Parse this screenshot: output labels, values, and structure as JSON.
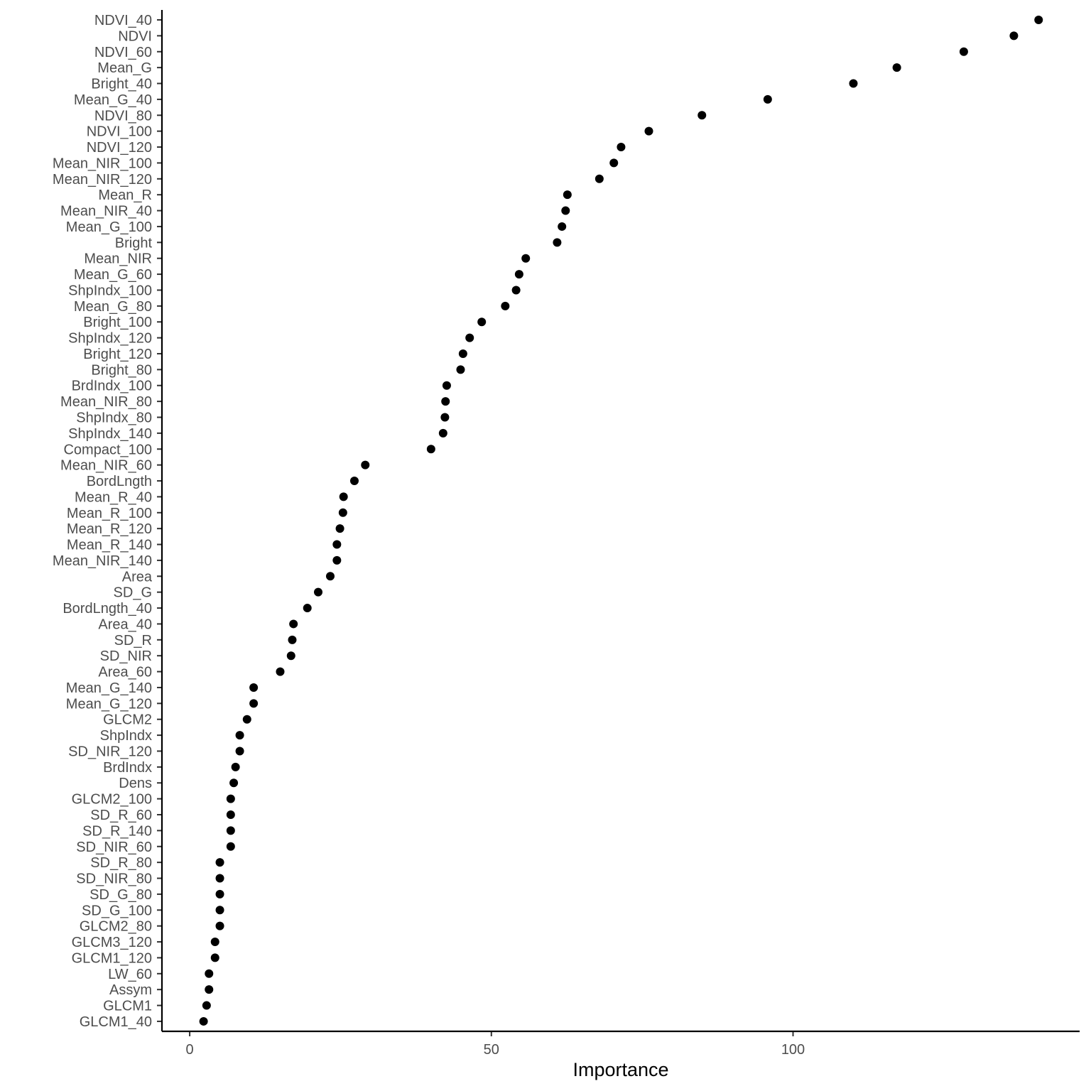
{
  "chart_data": {
    "type": "scatter",
    "title": "",
    "xlabel": "Importance",
    "ylabel": "",
    "xlim": [
      -4.6,
      147.5
    ],
    "xticks": [
      0,
      50,
      100
    ],
    "grid": false,
    "legend": "none",
    "point_color": "#000000",
    "categories": [
      "NDVI_40",
      "NDVI",
      "NDVI_60",
      "Mean_G",
      "Bright_40",
      "Mean_G_40",
      "NDVI_80",
      "NDVI_100",
      "NDVI_120",
      "Mean_NIR_100",
      "Mean_NIR_120",
      "Mean_R",
      "Mean_NIR_40",
      "Mean_G_100",
      "Bright",
      "Mean_NIR",
      "Mean_G_60",
      "ShpIndx_100",
      "Mean_G_80",
      "Bright_100",
      "ShpIndx_120",
      "Bright_120",
      "Bright_80",
      "BrdIndx_100",
      "Mean_NIR_80",
      "ShpIndx_80",
      "ShpIndx_140",
      "Compact_100",
      "Mean_NIR_60",
      "BordLngth",
      "Mean_R_40",
      "Mean_R_100",
      "Mean_R_120",
      "Mean_R_140",
      "Mean_NIR_140",
      "Area",
      "SD_G",
      "BordLngth_40",
      "Area_40",
      "SD_R",
      "SD_NIR",
      "Area_60",
      "Mean_G_140",
      "Mean_G_120",
      "GLCM2",
      "ShpIndx",
      "SD_NIR_120",
      "BrdIndx",
      "Dens",
      "GLCM2_100",
      "SD_R_60",
      "SD_R_140",
      "SD_NIR_60",
      "SD_R_80",
      "SD_NIR_80",
      "SD_G_80",
      "SD_G_100",
      "GLCM2_80",
      "GLCM3_120",
      "GLCM1_120",
      "LW_60",
      "Assym",
      "GLCM1",
      "GLCM1_40"
    ],
    "values": [
      140.7,
      136.6,
      128.3,
      117.2,
      110.0,
      95.8,
      84.9,
      76.1,
      71.5,
      70.3,
      67.9,
      62.6,
      62.3,
      61.7,
      60.9,
      55.7,
      54.6,
      54.1,
      52.3,
      48.4,
      46.4,
      45.3,
      44.9,
      42.6,
      42.4,
      42.3,
      42.0,
      40.0,
      29.1,
      27.3,
      25.5,
      25.4,
      24.9,
      24.4,
      24.4,
      23.3,
      21.3,
      19.5,
      17.2,
      17.0,
      16.8,
      15.0,
      10.6,
      10.6,
      9.5,
      8.3,
      8.3,
      7.6,
      7.3,
      6.8,
      6.8,
      6.8,
      6.8,
      5.0,
      5.0,
      5.0,
      5.0,
      5.0,
      4.2,
      4.2,
      3.2,
      3.2,
      2.8,
      2.3
    ]
  }
}
